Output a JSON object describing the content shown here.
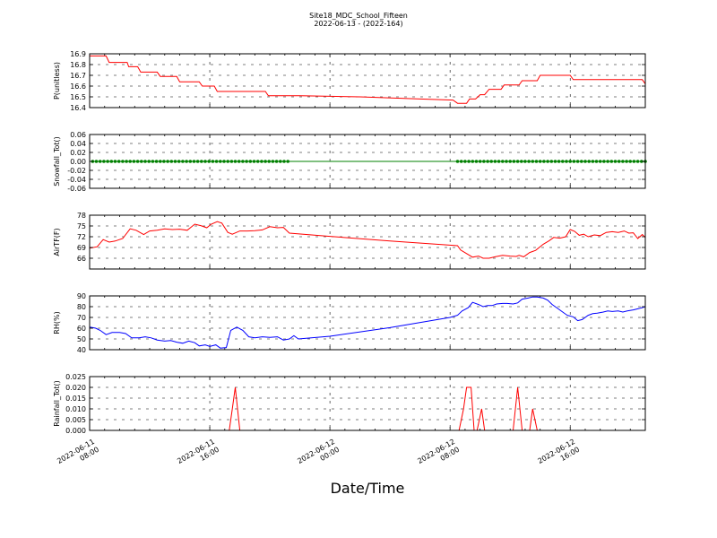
{
  "chart_data": {
    "type": "line",
    "title": "Site18_MDC_School_Fifteen",
    "subtitle": "2022-06-13 - (2022-164)",
    "xlabel": "Date/Time",
    "x_ticks": [
      {
        "label": [
          "2022-06-11",
          "08:00"
        ],
        "hour": 0
      },
      {
        "label": [
          "2022-06-11",
          "16:00"
        ],
        "hour": 8
      },
      {
        "label": [
          "2022-06-12",
          "00:00"
        ],
        "hour": 16
      },
      {
        "label": [
          "2022-06-12",
          "08:00"
        ],
        "hour": 24
      },
      {
        "label": [
          "2022-06-12",
          "16:00"
        ],
        "hour": 32
      }
    ],
    "x_range_hours": [
      0,
      37
    ],
    "panels": [
      {
        "ylabel": "P(unitless)",
        "ylim": [
          16.4,
          16.9
        ],
        "yticks": [
          16.4,
          16.5,
          16.6,
          16.7,
          16.8,
          16.9
        ],
        "color": "#ff0000",
        "series": [
          [
            0,
            16.88
          ],
          [
            1.1,
            16.88
          ],
          [
            1.3,
            16.82
          ],
          [
            2.5,
            16.82
          ],
          [
            2.6,
            16.78
          ],
          [
            3.2,
            16.78
          ],
          [
            3.4,
            16.73
          ],
          [
            4.5,
            16.73
          ],
          [
            4.7,
            16.69
          ],
          [
            5.8,
            16.69
          ],
          [
            6,
            16.64
          ],
          [
            7.3,
            16.64
          ],
          [
            7.5,
            16.6
          ],
          [
            8.3,
            16.6
          ],
          [
            8.5,
            16.55
          ],
          [
            11.7,
            16.55
          ],
          [
            11.9,
            16.51
          ],
          [
            14,
            16.51
          ],
          [
            18,
            16.5
          ],
          [
            22,
            16.48
          ],
          [
            24.2,
            16.47
          ],
          [
            24.5,
            16.44
          ],
          [
            25.1,
            16.44
          ],
          [
            25.3,
            16.48
          ],
          [
            25.7,
            16.48
          ],
          [
            26,
            16.52
          ],
          [
            26.3,
            16.52
          ],
          [
            26.6,
            16.57
          ],
          [
            27.4,
            16.57
          ],
          [
            27.6,
            16.61
          ],
          [
            28.6,
            16.61
          ],
          [
            28.8,
            16.65
          ],
          [
            29.8,
            16.65
          ],
          [
            30,
            16.7
          ],
          [
            32,
            16.7
          ],
          [
            32.2,
            16.66
          ],
          [
            36.8,
            16.66
          ],
          [
            37,
            16.62
          ]
        ]
      },
      {
        "ylabel": "Snowfall_Tot()",
        "ylim": [
          -0.06,
          0.06
        ],
        "yticks": [
          -0.06,
          -0.04,
          -0.02,
          0.0,
          0.02,
          0.04,
          0.06
        ],
        "tick_format": "fixed2",
        "color": "#008000",
        "series": [
          [
            0,
            0
          ],
          [
            37,
            0
          ]
        ],
        "markers_ranges": [
          [
            0.2,
            13.3
          ],
          [
            24.5,
            37
          ]
        ]
      },
      {
        "ylabel": "AirTF(F)",
        "ylim": [
          63,
          78
        ],
        "yticks": [
          66,
          69,
          72,
          75,
          78
        ],
        "color": "#ff0000",
        "series": [
          [
            0,
            68.8
          ],
          [
            0.5,
            69.2
          ],
          [
            0.9,
            71.2
          ],
          [
            1.3,
            70.5
          ],
          [
            1.7,
            70.8
          ],
          [
            2.2,
            71.5
          ],
          [
            2.7,
            74.2
          ],
          [
            3.1,
            73.8
          ],
          [
            3.6,
            72.6
          ],
          [
            4,
            73.6
          ],
          [
            4.5,
            73.8
          ],
          [
            5,
            74.2
          ],
          [
            5.5,
            74.0
          ],
          [
            6,
            74.1
          ],
          [
            6.5,
            73.8
          ],
          [
            7,
            75.5
          ],
          [
            7.4,
            75.1
          ],
          [
            7.8,
            74.5
          ],
          [
            8.1,
            75.5
          ],
          [
            8.5,
            76.2
          ],
          [
            8.8,
            75.8
          ],
          [
            9.2,
            73.2
          ],
          [
            9.5,
            72.7
          ],
          [
            10,
            73.6
          ],
          [
            10.5,
            73.6
          ],
          [
            11,
            73.7
          ],
          [
            11.5,
            73.9
          ],
          [
            12,
            74.8
          ],
          [
            12.5,
            74.5
          ],
          [
            12.9,
            74.6
          ],
          [
            13.3,
            73.0
          ],
          [
            16,
            72.1
          ],
          [
            20,
            70.8
          ],
          [
            24.5,
            69.5
          ],
          [
            24.7,
            68.3
          ],
          [
            25.1,
            67.3
          ],
          [
            25.5,
            66.3
          ],
          [
            25.9,
            66.6
          ],
          [
            26.2,
            66.0
          ],
          [
            26.6,
            66.0
          ],
          [
            27,
            66.4
          ],
          [
            27.5,
            66.8
          ],
          [
            28,
            66.6
          ],
          [
            28.4,
            66.5
          ],
          [
            28.6,
            66.8
          ],
          [
            28.9,
            66.4
          ],
          [
            29.3,
            67.6
          ],
          [
            29.7,
            68.2
          ],
          [
            30.2,
            69.9
          ],
          [
            30.6,
            70.9
          ],
          [
            30.9,
            71.8
          ],
          [
            31.3,
            71.6
          ],
          [
            31.7,
            72.0
          ],
          [
            32,
            74.0
          ],
          [
            32.3,
            73.5
          ],
          [
            32.6,
            72.4
          ],
          [
            32.9,
            72.7
          ],
          [
            33.2,
            72.0
          ],
          [
            33.6,
            72.5
          ],
          [
            34,
            72.3
          ],
          [
            34.4,
            73.2
          ],
          [
            34.8,
            73.4
          ],
          [
            35.2,
            73.2
          ],
          [
            35.6,
            73.6
          ],
          [
            35.9,
            73.0
          ],
          [
            36.2,
            73.1
          ],
          [
            36.5,
            71.5
          ],
          [
            36.8,
            72.6
          ],
          [
            37,
            71.8
          ]
        ]
      },
      {
        "ylabel": "RH(%)",
        "ylim": [
          40,
          90
        ],
        "yticks": [
          40,
          50,
          60,
          70,
          80,
          90
        ],
        "color": "#0000ff",
        "series": [
          [
            0,
            61
          ],
          [
            0.4,
            60
          ],
          [
            0.7,
            58
          ],
          [
            1.1,
            54
          ],
          [
            1.5,
            56
          ],
          [
            2,
            56
          ],
          [
            2.4,
            55
          ],
          [
            2.8,
            51
          ],
          [
            3.3,
            51
          ],
          [
            3.7,
            52
          ],
          [
            4.1,
            51
          ],
          [
            4.5,
            49
          ],
          [
            5,
            48
          ],
          [
            5.4,
            48.5
          ],
          [
            5.8,
            47
          ],
          [
            6.2,
            46
          ],
          [
            6.6,
            48
          ],
          [
            7,
            46.5
          ],
          [
            7.3,
            43.5
          ],
          [
            7.7,
            44.5
          ],
          [
            8,
            43
          ],
          [
            8.4,
            44.5
          ],
          [
            8.7,
            41.5
          ],
          [
            9.1,
            42
          ],
          [
            9.4,
            58
          ],
          [
            9.8,
            61
          ],
          [
            10.2,
            58
          ],
          [
            10.6,
            52
          ],
          [
            11,
            51
          ],
          [
            11.5,
            52
          ],
          [
            12,
            51.5
          ],
          [
            12.5,
            52
          ],
          [
            12.9,
            49
          ],
          [
            13.3,
            50
          ],
          [
            13.6,
            53
          ],
          [
            13.9,
            50
          ],
          [
            16,
            52.5
          ],
          [
            20,
            60.5
          ],
          [
            24,
            70
          ],
          [
            24.5,
            72
          ],
          [
            24.8,
            76
          ],
          [
            25.2,
            79
          ],
          [
            25.5,
            84
          ],
          [
            25.9,
            82
          ],
          [
            26.2,
            80
          ],
          [
            26.5,
            81
          ],
          [
            26.8,
            81
          ],
          [
            27.1,
            82.5
          ],
          [
            27.5,
            83
          ],
          [
            27.8,
            83
          ],
          [
            28.2,
            82.5
          ],
          [
            28.5,
            83.5
          ],
          [
            28.8,
            87
          ],
          [
            29.2,
            88
          ],
          [
            29.5,
            89
          ],
          [
            29.8,
            89
          ],
          [
            30.2,
            88
          ],
          [
            30.5,
            86
          ],
          [
            30.8,
            82
          ],
          [
            31.2,
            78
          ],
          [
            31.5,
            75
          ],
          [
            31.8,
            72
          ],
          [
            32.2,
            70.5
          ],
          [
            32.5,
            67
          ],
          [
            32.8,
            68
          ],
          [
            33.2,
            72
          ],
          [
            33.5,
            73.5
          ],
          [
            33.8,
            74
          ],
          [
            34.2,
            75
          ],
          [
            34.5,
            76
          ],
          [
            34.8,
            75.5
          ],
          [
            35.2,
            76
          ],
          [
            35.5,
            75
          ],
          [
            35.8,
            76
          ],
          [
            36.2,
            77
          ],
          [
            36.5,
            78
          ],
          [
            36.8,
            79
          ],
          [
            37,
            80
          ]
        ]
      },
      {
        "ylabel": "Rainfall_Tot()",
        "ylim": [
          0,
          0.025
        ],
        "yticks": [
          0,
          0.005,
          0.01,
          0.015,
          0.02,
          0.025
        ],
        "tick_format": "fixed3",
        "color": "#ff0000",
        "series": [
          [
            0,
            0
          ],
          [
            9.3,
            0
          ],
          [
            9.5,
            0.01
          ],
          [
            9.7,
            0.02
          ],
          [
            10,
            0
          ],
          [
            24.6,
            0
          ],
          [
            24.9,
            0.01
          ],
          [
            25.1,
            0.02
          ],
          [
            25.4,
            0.02
          ],
          [
            25.6,
            0
          ],
          [
            25.8,
            0
          ],
          [
            26.1,
            0.01
          ],
          [
            26.3,
            0
          ],
          [
            28.2,
            0
          ],
          [
            28.5,
            0.02
          ],
          [
            28.8,
            0
          ],
          [
            29.3,
            0
          ],
          [
            29.5,
            0.01
          ],
          [
            29.8,
            0
          ],
          [
            37,
            0
          ]
        ]
      }
    ]
  }
}
